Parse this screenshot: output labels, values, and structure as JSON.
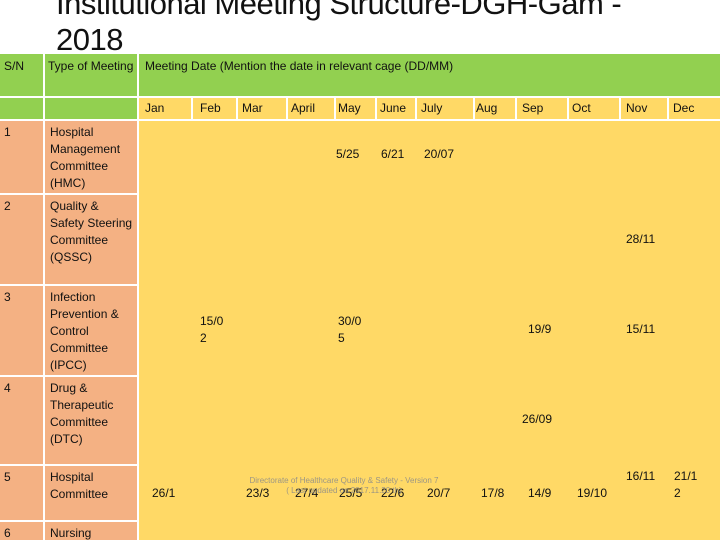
{
  "title": "Institutional Meeting Structure-DGH-Gam - 2018",
  "header": {
    "sn_label": "S/N",
    "type_label": "Type of Meeting",
    "date_label": "Meeting Date (Mention the date in relevant cage (DD/MM)"
  },
  "months": [
    "Jan",
    "Feb",
    "Mar",
    "April",
    "May",
    "June",
    "July",
    "Aug",
    "Sep",
    "Oct",
    "Nov",
    "Dec"
  ],
  "rows": [
    {
      "sn": "1",
      "type": "Hospital Management Committee (HMC)",
      "cells": {
        "May": "5/25",
        "June": "6/21",
        "July": "20/07"
      }
    },
    {
      "sn": "2",
      "type": "Quality & Safety Steering Committee (QSSC)",
      "cells": {
        "Nov": "28/11"
      }
    },
    {
      "sn": "3",
      "type": "Infection Prevention & Control Committee (IPCC)",
      "cells": {
        "Feb": "15/0 2",
        "May": "30/0 5",
        "Sep": "19/9",
        "Nov": "15/11"
      }
    },
    {
      "sn": "4",
      "type": "Drug & Therapeutic Committee (DTC)",
      "cells": {
        "Sep": "26/09"
      }
    },
    {
      "sn": "5",
      "type": "Hospital Committee",
      "cells": {
        "Jan": "26/1",
        "Mar": "23/3",
        "April": "27/4",
        "May": "25/5",
        "June": "22/6",
        "July": "20/7",
        "Aug": "17/8",
        "Sep": "14/9",
        "Oct": "19/10",
        "Nov": "16/11",
        "Dec": "21/1 2"
      }
    },
    {
      "sn": "6",
      "type": "Nursing",
      "cells": {}
    }
  ],
  "footer": {
    "line1": "Directorate of Healthcare Quality & Safety - Version 7",
    "line2": "( Last updated on 2017.11.20 th)"
  }
}
